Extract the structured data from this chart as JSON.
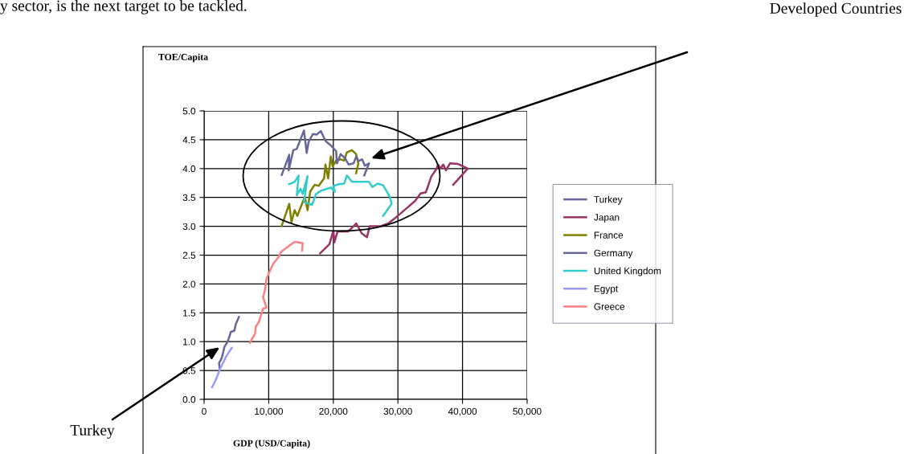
{
  "chart_data": {
    "type": "line",
    "xlabel": "GDP (USD/Capita)",
    "xlim": [
      0,
      50000
    ],
    "xticks": [
      0,
      {
        "value": 10000,
        "label": "10,000"
      },
      {
        "value": 20000,
        "label": "20,000"
      },
      {
        "value": 30000,
        "label": "30,000"
      },
      {
        "value": 40000,
        "label": "40,000"
      },
      {
        "value": 50000,
        "label": "50,000"
      }
    ],
    "ylim": [
      0,
      5
    ],
    "yticks": [
      {
        "value": 0,
        "label": "0.0"
      },
      {
        "value": 0.5,
        "label": "0.5"
      },
      {
        "value": 1,
        "label": "1.0"
      },
      {
        "value": 1.5,
        "label": "1.5"
      },
      {
        "value": 2,
        "label": "2.0"
      },
      {
        "value": 2.5,
        "label": "2.5"
      },
      {
        "value": 3,
        "label": "3.0"
      },
      {
        "value": 3.5,
        "label": "3.5"
      },
      {
        "value": 4,
        "label": "4.0"
      },
      {
        "value": 4.5,
        "label": "4.5"
      },
      {
        "value": 5,
        "label": "5.0"
      }
    ],
    "grid": true,
    "legend": "right",
    "marker": "none",
    "line_style": "solid",
    "series": [
      {
        "name": "Turkey",
        "color": "#666699",
        "x": [
          2400,
          2320,
          2740,
          3150,
          3650,
          4150,
          4690,
          4890,
          5390
        ],
        "values": [
          0.54,
          0.63,
          0.72,
          0.91,
          1.0,
          1.17,
          1.19,
          1.3,
          1.43
        ]
      },
      {
        "name": "Japan",
        "color": "#993366",
        "x": [
          17950,
          19400,
          20020,
          20150,
          20650,
          22300,
          23550,
          24380,
          25210,
          25620,
          27280,
          28520,
          29980,
          31430,
          32670,
          33500,
          34330,
          35160,
          35990,
          36190,
          36610,
          37020,
          37440,
          38060,
          39300,
          40460,
          40800,
          38560
        ],
        "values": [
          2.53,
          2.69,
          2.93,
          2.72,
          2.91,
          2.91,
          3.05,
          2.88,
          2.81,
          3.0,
          3.0,
          3.05,
          3.18,
          3.32,
          3.44,
          3.57,
          3.59,
          3.86,
          4.0,
          4.07,
          4.0,
          4.07,
          3.97,
          4.09,
          4.08,
          4.02,
          4.0,
          3.72
        ]
      },
      {
        "name": "France",
        "color": "#808000",
        "x": [
          12020,
          13180,
          13520,
          14010,
          14430,
          15260,
          15590,
          16010,
          16420,
          17120,
          17750,
          18570,
          18780,
          19200,
          19610,
          19900,
          20450,
          21060,
          21680,
          22100,
          22890,
          23530,
          23880,
          23530
        ],
        "values": [
          3.01,
          3.39,
          3.07,
          3.28,
          3.18,
          3.42,
          3.51,
          3.28,
          3.6,
          3.72,
          3.7,
          3.83,
          4.07,
          3.83,
          4.21,
          4.04,
          4.14,
          4.16,
          4.14,
          4.28,
          4.32,
          4.25,
          4.09,
          3.92
        ]
      },
      {
        "name": "Germany",
        "color": "#666699",
        "x": [
          12020,
          13180,
          13100,
          13810,
          14340,
          15460,
          15880,
          16170,
          16830,
          17410,
          18070,
          18780,
          19730,
          20440,
          20560,
          21150,
          21810,
          22390,
          23130,
          23550,
          23880,
          24460,
          24880,
          25540,
          24790
        ],
        "values": [
          3.89,
          4.24,
          3.97,
          4.32,
          4.34,
          4.66,
          4.27,
          4.46,
          4.6,
          4.59,
          4.65,
          4.48,
          4.39,
          4.3,
          4.09,
          4.25,
          4.18,
          4.07,
          4.09,
          4.21,
          4.13,
          4.16,
          4.05,
          4.09,
          3.88
        ]
      },
      {
        "name": "United Kingdom",
        "color": "#33cccc",
        "x": [
          13180,
          14010,
          14640,
          14350,
          14930,
          15260,
          16010,
          15470,
          16710,
          17330,
          18160,
          19610,
          20240,
          20020,
          20860,
          21680,
          22100,
          22890,
          24380,
          25540,
          26040,
          26870,
          27710,
          28750,
          29030,
          27710
        ],
        "values": [
          3.73,
          3.77,
          3.88,
          3.54,
          3.65,
          3.56,
          3.87,
          3.42,
          3.37,
          3.56,
          3.62,
          3.67,
          3.6,
          3.7,
          3.73,
          3.74,
          3.88,
          3.77,
          3.77,
          3.77,
          3.68,
          3.74,
          3.71,
          3.51,
          3.39,
          3.18
        ]
      },
      {
        "name": "Egypt",
        "color": "#9999ff",
        "x": [
          1240,
          1780,
          2200,
          2610,
          3020,
          3450,
          4270
        ],
        "values": [
          0.21,
          0.33,
          0.45,
          0.56,
          0.65,
          0.75,
          0.89
        ]
      },
      {
        "name": "Greece",
        "color": "#ff8080",
        "x": [
          7090,
          7880,
          8000,
          8430,
          8850,
          9120,
          9660,
          9120,
          9460,
          9660,
          10200,
          10700,
          11530,
          11940,
          12770,
          14010,
          15260,
          15170
        ],
        "values": [
          0.98,
          1.14,
          1.26,
          1.33,
          1.47,
          1.57,
          1.59,
          1.77,
          1.91,
          2.09,
          2.23,
          2.35,
          2.47,
          2.56,
          2.63,
          2.73,
          2.71,
          2.58
        ]
      }
    ],
    "annotations": [
      "y sector, is the next target to be tackled.",
      "TOE/Capita",
      "Developed Countries",
      {
        "text": "Turkey",
        "x": 2400,
        "y": 0.9
      }
    ]
  }
}
